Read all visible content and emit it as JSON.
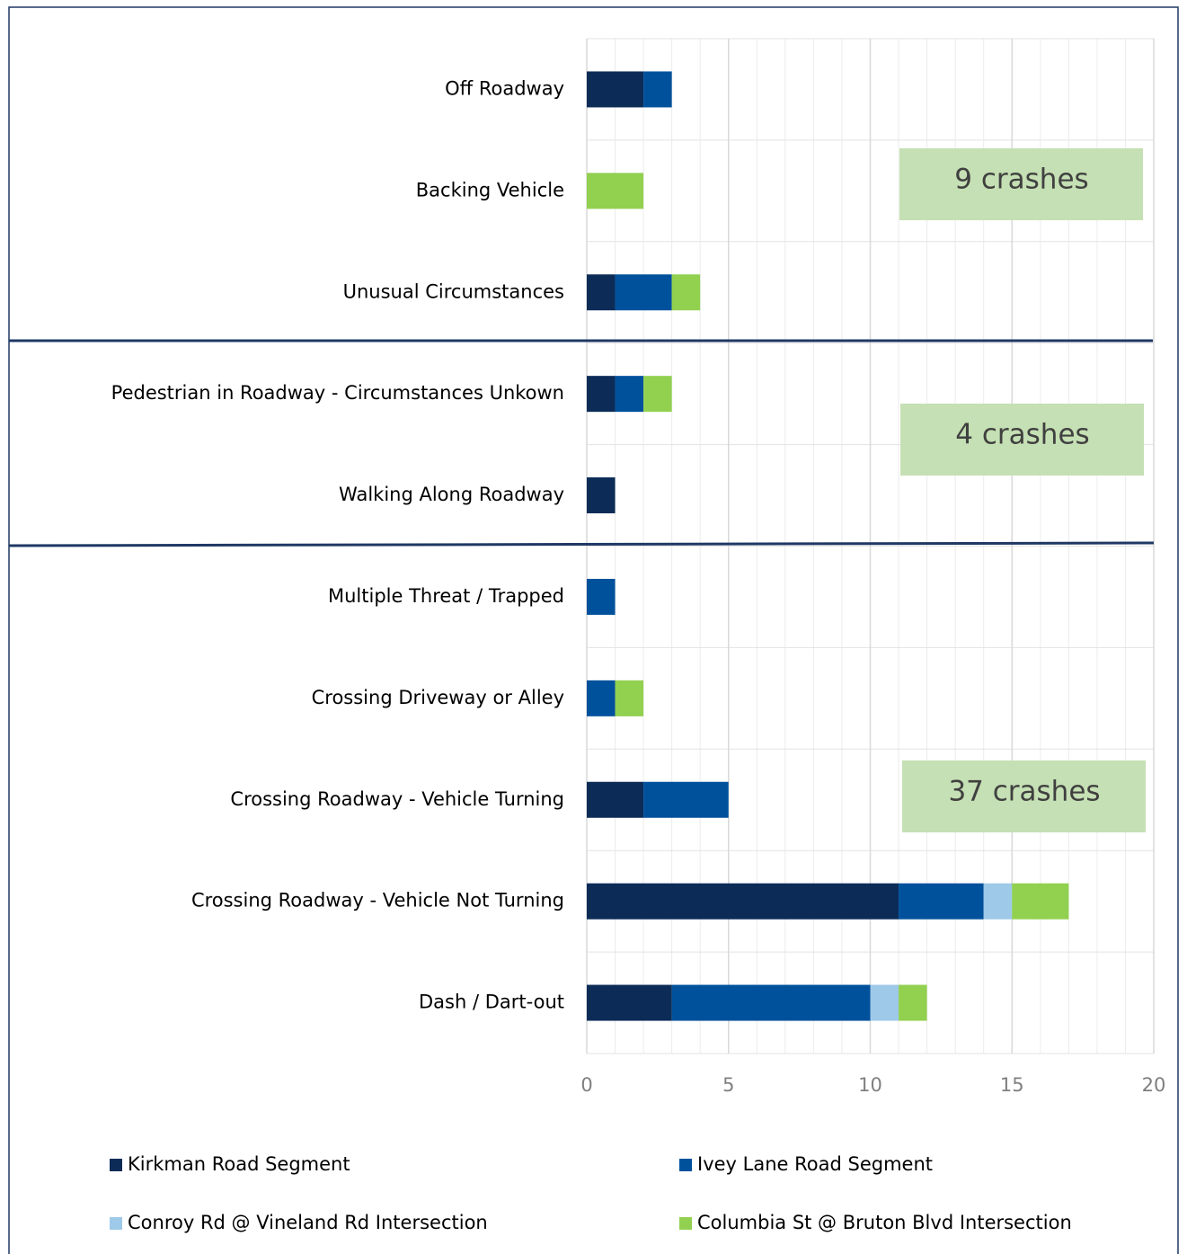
{
  "chart_data": {
    "type": "stacked_barh",
    "categories": [
      "Off Roadway",
      "Backing Vehicle",
      "Unusual Circumstances",
      "Pedestrian in Roadway - Circumstances Unkown",
      "Walking Along Roadway",
      "Multiple Threat / Trapped",
      "Crossing Driveway or Alley",
      "Crossing Roadway - Vehicle Turning",
      "Crossing Roadway - Vehicle Not Turning",
      "Dash / Dart-out"
    ],
    "series": [
      {
        "name": "Kirkman Road Segment",
        "color": "#0c2c57",
        "values": [
          2,
          0,
          1,
          1,
          1,
          0,
          0,
          2,
          11,
          3
        ]
      },
      {
        "name": "Ivey Lane Road Segment",
        "color": "#00519c",
        "values": [
          1,
          0,
          2,
          1,
          0,
          1,
          1,
          3,
          3,
          7
        ]
      },
      {
        "name": "Conroy Rd @ Vineland Rd Intersection",
        "color": "#9ec9e9",
        "values": [
          0,
          0,
          0,
          0,
          0,
          0,
          0,
          0,
          1,
          1
        ]
      },
      {
        "name": "Columbia St @ Bruton Blvd Intersection",
        "color": "#92d050",
        "values": [
          0,
          2,
          1,
          1,
          0,
          0,
          1,
          0,
          2,
          1
        ]
      }
    ],
    "xlim": [
      0,
      20
    ],
    "xticks": [
      0,
      5,
      10,
      15,
      20
    ],
    "grid": true,
    "legend": "bottom",
    "annotations": [
      "9 crashes",
      "4 crashes",
      "37 crashes"
    ]
  }
}
